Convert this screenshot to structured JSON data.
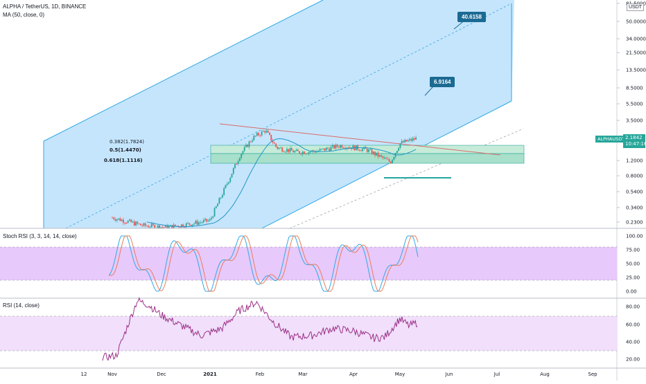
{
  "header": {
    "symbol_line": "ALPHA / TetherUS, 1D, BINANCE",
    "ma_line": "MA (50, close, 0)",
    "currency": "USDT"
  },
  "price_pane": {
    "y_ticks": [
      "81.5000",
      "50.0000",
      "34.0000",
      "21.5000",
      "13.5000",
      "8.5000",
      "5.5000",
      "3.5000",
      "2.1842",
      "1.2000",
      "0.8000",
      "0.5400",
      "0.3400",
      "0.2300"
    ],
    "current_price_label": "ALPHAUSDT",
    "current_price": "2.1842",
    "countdown": "10:47:16",
    "fib_labels": [
      "0.382(1.7824)",
      "0.5(1.4470)",
      "0.618(1.1116)"
    ],
    "target_labels": [
      "40.6158",
      "6.9164"
    ]
  },
  "stoch_pane": {
    "title": "Stoch RSI (3, 3, 14, 14, close)",
    "y_ticks": [
      "100.00",
      "75.00",
      "50.00",
      "25.00",
      "0.00"
    ]
  },
  "rsi_pane": {
    "title": "RSI (14, close)",
    "y_ticks": [
      "80.00",
      "60.00",
      "40.00",
      "20.00"
    ]
  },
  "time_axis": [
    "12",
    "Nov",
    "Dec",
    "2021",
    "Feb",
    "Mar",
    "Apr",
    "May",
    "Jun",
    "Jul",
    "Aug",
    "Sep"
  ],
  "colors": {
    "channel_fill": "#bbe0fb",
    "channel_line": "#2fa8e4",
    "fib_fill": "#c6ecd9",
    "stoch_band": "#e7c9fb",
    "rsi_band": "#f1dffb",
    "candle_up": "#26a69a",
    "candle_down": "#ef5350",
    "ma_line": "#2196c8",
    "callout": "#1b6a93",
    "rsi_line": "#9b2f86",
    "stoch_k": "#2fa8e4",
    "stoch_d": "#e97d5a",
    "trendline": "#d96a6a"
  },
  "chart_data": {
    "type": "candlestick",
    "title": "ALPHA / TetherUS, 1D, BINANCE",
    "x_range": [
      "2020-10-12",
      "2021-09-10"
    ],
    "y_scale": "log",
    "ylim": [
      0.2,
      90
    ],
    "price_close_points": [
      [
        "2020-11-01",
        0.26
      ],
      [
        "2020-11-20",
        0.21
      ],
      [
        "2020-12-05",
        0.2
      ],
      [
        "2020-12-20",
        0.22
      ],
      [
        "2021-01-01",
        0.24
      ],
      [
        "2021-01-10",
        0.55
      ],
      [
        "2021-01-20",
        1.4
      ],
      [
        "2021-01-28",
        2.2
      ],
      [
        "2021-02-05",
        2.7
      ],
      [
        "2021-02-12",
        1.7
      ],
      [
        "2021-02-25",
        1.5
      ],
      [
        "2021-03-10",
        1.55
      ],
      [
        "2021-03-25",
        1.8
      ],
      [
        "2021-04-10",
        1.6
      ],
      [
        "2021-04-25",
        1.15
      ],
      [
        "2021-05-01",
        1.9
      ],
      [
        "2021-05-12",
        2.1842
      ]
    ],
    "ma50": {
      "name": "MA (50, close, 0)"
    },
    "fib_levels": [
      {
        "ratio": 0.382,
        "price": 1.7824
      },
      {
        "ratio": 0.5,
        "price": 1.447
      },
      {
        "ratio": 0.618,
        "price": 1.1116
      }
    ],
    "projection_targets": [
      40.6158,
      6.9164
    ],
    "stoch_rsi": {
      "title": "Stoch RSI (3, 3, 14, 14, close)",
      "ylim": [
        0,
        100
      ],
      "bands": [
        20,
        80
      ]
    },
    "rsi": {
      "title": "RSI (14, close)",
      "ylim": [
        10,
        90
      ],
      "bands": [
        30,
        70
      ]
    }
  }
}
